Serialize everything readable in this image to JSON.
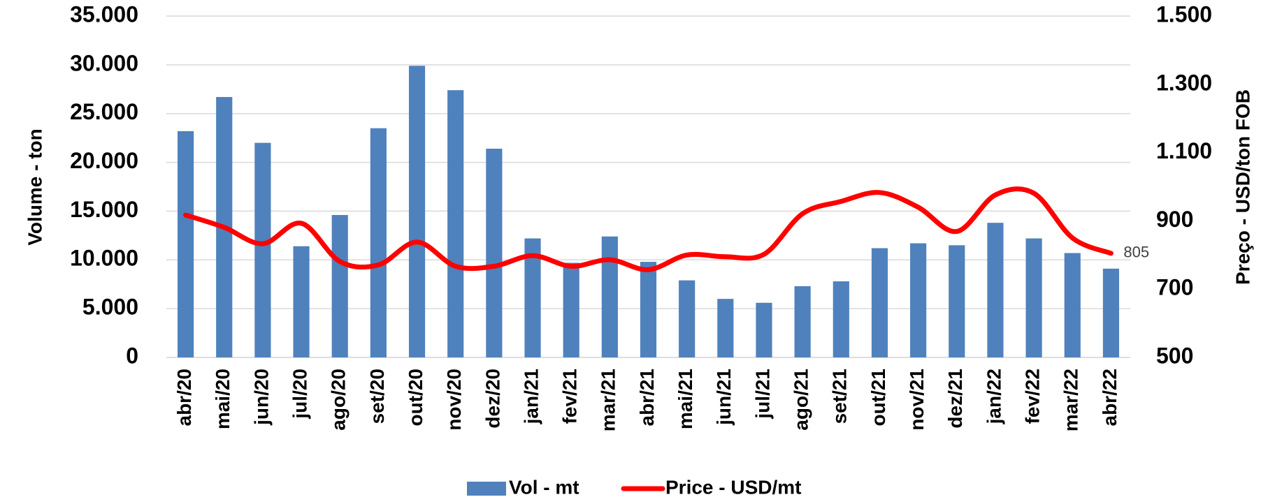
{
  "chart_data": {
    "type": "bar",
    "y_label": "Volume - ton",
    "y2_label": "Preço - USD/ton FOB",
    "categories": [
      "abr/20",
      "mai/20",
      "jun/20",
      "jul/20",
      "ago/20",
      "set/20",
      "out/20",
      "nov/20",
      "dez/20",
      "jan/21",
      "fev/21",
      "mar/21",
      "abr/21",
      "mai/21",
      "jun/21",
      "jul/21",
      "ago/21",
      "set/21",
      "out/21",
      "nov/21",
      "dez/21",
      "jan/22",
      "fev/22",
      "mar/22",
      "abr/22"
    ],
    "series": [
      {
        "name": "Vol - mt",
        "color": "#4f81bd",
        "axis": "y",
        "type": "bar",
        "values": [
          23200,
          26700,
          22000,
          11400,
          14600,
          23500,
          29900,
          27400,
          21400,
          12200,
          9700,
          12400,
          9800,
          7900,
          6000,
          5600,
          7300,
          7800,
          11200,
          11700,
          11500,
          13800,
          12200,
          10700,
          9100
        ]
      },
      {
        "name": "Price - USD/mt",
        "color": "#ff0000",
        "axis": "y2",
        "type": "line",
        "values": [
          917,
          881,
          833,
          893,
          781,
          771,
          838,
          767,
          767,
          798,
          767,
          786,
          757,
          800,
          795,
          802,
          921,
          957,
          983,
          940,
          869,
          976,
          981,
          850,
          805
        ]
      }
    ],
    "ylim": [
      0,
      35000
    ],
    "yticks": [
      0,
      {
        "value": 5000,
        "label": "5.000"
      },
      {
        "value": 10000,
        "label": "10.000"
      },
      {
        "value": 15000,
        "label": "15.000"
      },
      {
        "value": 20000,
        "label": "20.000"
      },
      {
        "value": 25000,
        "label": "25.000"
      },
      {
        "value": 30000,
        "label": "30.000"
      },
      {
        "value": 35000,
        "label": "35.000"
      }
    ],
    "y2lim": [
      500,
      1500
    ],
    "y2ticks": [
      500,
      700,
      900,
      {
        "value": 1100,
        "label": "1.100"
      },
      {
        "value": 1300,
        "label": "1.300"
      },
      {
        "value": 1500,
        "label": "1.500"
      }
    ],
    "grid": true,
    "legend": "bottom"
  }
}
